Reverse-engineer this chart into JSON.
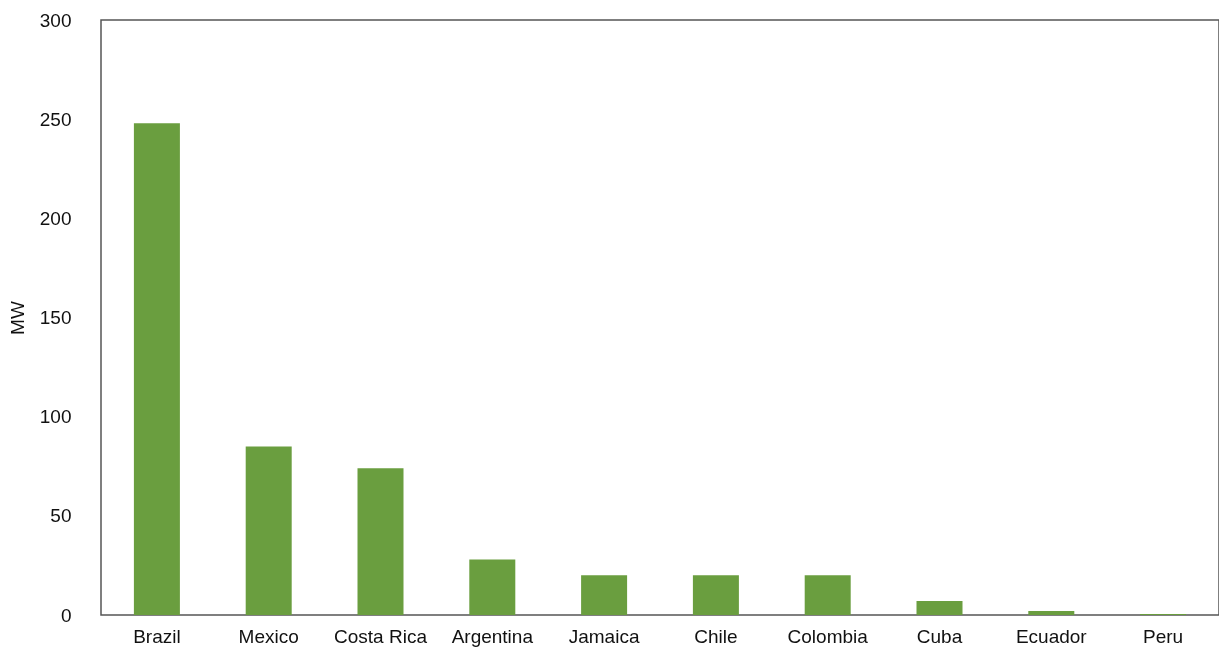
{
  "chart_data": {
    "type": "bar",
    "ylabel": "MW",
    "categories": [
      "Brazil",
      "Mexico",
      "Costa Rica",
      "Argentina",
      "Jamaica",
      "Chile",
      "Colombia",
      "Cuba",
      "Ecuador",
      "Peru"
    ],
    "values": [
      248,
      85,
      74,
      28,
      20,
      20,
      20,
      7,
      2,
      0.5
    ],
    "color": "#6a9e3f",
    "ylim": [
      0,
      300
    ],
    "yticks": [
      0,
      50,
      100,
      150,
      200,
      250,
      300
    ],
    "grid": false
  }
}
